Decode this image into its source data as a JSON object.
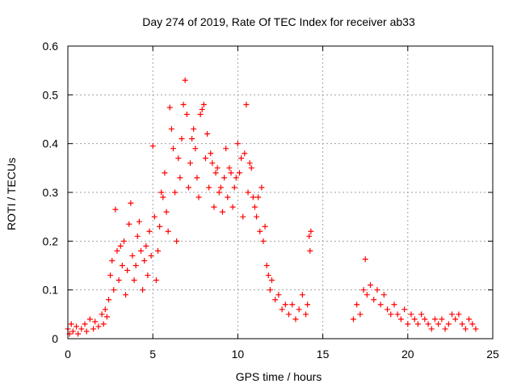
{
  "chart_data": {
    "type": "scatter",
    "title": "Day 274 of 2019, Rate Of TEC Index for receiver ab33",
    "xlabel": "GPS time / hours",
    "ylabel": "ROTI / TECUs",
    "xlim": [
      0,
      25
    ],
    "ylim": [
      0,
      0.6
    ],
    "xticks": [
      0,
      5,
      10,
      15,
      20,
      25
    ],
    "yticks": [
      0,
      0.1,
      0.2,
      0.3,
      0.4,
      0.5,
      0.6
    ],
    "xtick_labels": [
      "0",
      "5",
      "10",
      "15",
      "20",
      "25"
    ],
    "ytick_labels": [
      "0",
      "0.1",
      "0.2",
      "0.3",
      "0.4",
      "0.5",
      "0.6"
    ],
    "grid": true,
    "marker": "+",
    "color": "#ff0000",
    "series": [
      {
        "name": "ROTI",
        "points": [
          [
            0.0,
            0.02
          ],
          [
            0.1,
            0.01
          ],
          [
            0.2,
            0.03
          ],
          [
            0.3,
            0.015
          ],
          [
            0.5,
            0.025
          ],
          [
            0.6,
            0.01
          ],
          [
            0.8,
            0.02
          ],
          [
            1.0,
            0.03
          ],
          [
            1.1,
            0.015
          ],
          [
            1.3,
            0.04
          ],
          [
            1.5,
            0.02
          ],
          [
            1.6,
            0.035
          ],
          [
            1.8,
            0.025
          ],
          [
            2.0,
            0.05
          ],
          [
            2.1,
            0.03
          ],
          [
            2.2,
            0.06
          ],
          [
            2.3,
            0.045
          ],
          [
            2.4,
            0.08
          ],
          [
            2.5,
            0.13
          ],
          [
            2.6,
            0.16
          ],
          [
            2.7,
            0.1
          ],
          [
            2.8,
            0.265
          ],
          [
            2.9,
            0.18
          ],
          [
            3.0,
            0.12
          ],
          [
            3.1,
            0.19
          ],
          [
            3.2,
            0.15
          ],
          [
            3.3,
            0.2
          ],
          [
            3.4,
            0.09
          ],
          [
            3.5,
            0.14
          ],
          [
            3.6,
            0.235
          ],
          [
            3.7,
            0.278
          ],
          [
            3.8,
            0.17
          ],
          [
            3.9,
            0.12
          ],
          [
            4.0,
            0.15
          ],
          [
            4.1,
            0.21
          ],
          [
            4.2,
            0.24
          ],
          [
            4.3,
            0.18
          ],
          [
            4.4,
            0.1
          ],
          [
            4.5,
            0.16
          ],
          [
            4.6,
            0.19
          ],
          [
            4.7,
            0.13
          ],
          [
            4.8,
            0.22
          ],
          [
            4.9,
            0.17
          ],
          [
            5.0,
            0.395
          ],
          [
            5.1,
            0.25
          ],
          [
            5.2,
            0.12
          ],
          [
            5.3,
            0.18
          ],
          [
            5.4,
            0.23
          ],
          [
            5.5,
            0.3
          ],
          [
            5.6,
            0.29
          ],
          [
            5.7,
            0.34
          ],
          [
            5.8,
            0.26
          ],
          [
            5.9,
            0.22
          ],
          [
            6.0,
            0.474
          ],
          [
            6.1,
            0.43
          ],
          [
            6.2,
            0.39
          ],
          [
            6.3,
            0.3
          ],
          [
            6.4,
            0.2
          ],
          [
            6.5,
            0.37
          ],
          [
            6.6,
            0.33
          ],
          [
            6.7,
            0.41
          ],
          [
            6.8,
            0.48
          ],
          [
            6.9,
            0.53
          ],
          [
            7.0,
            0.46
          ],
          [
            7.1,
            0.31
          ],
          [
            7.2,
            0.36
          ],
          [
            7.3,
            0.41
          ],
          [
            7.4,
            0.43
          ],
          [
            7.5,
            0.39
          ],
          [
            7.6,
            0.33
          ],
          [
            7.7,
            0.29
          ],
          [
            7.8,
            0.46
          ],
          [
            7.9,
            0.47
          ],
          [
            8.0,
            0.48
          ],
          [
            8.1,
            0.37
          ],
          [
            8.2,
            0.42
          ],
          [
            8.3,
            0.31
          ],
          [
            8.4,
            0.38
          ],
          [
            8.5,
            0.36
          ],
          [
            8.6,
            0.27
          ],
          [
            8.7,
            0.34
          ],
          [
            8.8,
            0.35
          ],
          [
            8.9,
            0.3
          ],
          [
            9.0,
            0.31
          ],
          [
            9.1,
            0.26
          ],
          [
            9.2,
            0.33
          ],
          [
            9.3,
            0.39
          ],
          [
            9.4,
            0.29
          ],
          [
            9.5,
            0.35
          ],
          [
            9.6,
            0.34
          ],
          [
            9.7,
            0.27
          ],
          [
            9.8,
            0.31
          ],
          [
            9.9,
            0.33
          ],
          [
            10.0,
            0.4
          ],
          [
            10.1,
            0.34
          ],
          [
            10.2,
            0.37
          ],
          [
            10.3,
            0.25
          ],
          [
            10.4,
            0.38
          ],
          [
            10.5,
            0.48
          ],
          [
            10.6,
            0.3
          ],
          [
            10.7,
            0.36
          ],
          [
            10.8,
            0.35
          ],
          [
            10.9,
            0.29
          ],
          [
            11.0,
            0.27
          ],
          [
            11.1,
            0.25
          ],
          [
            11.2,
            0.29
          ],
          [
            11.3,
            0.22
          ],
          [
            11.4,
            0.31
          ],
          [
            11.5,
            0.2
          ],
          [
            11.6,
            0.23
          ],
          [
            11.7,
            0.15
          ],
          [
            11.8,
            0.13
          ],
          [
            11.9,
            0.1
          ],
          [
            12.0,
            0.12
          ],
          [
            12.2,
            0.08
          ],
          [
            12.4,
            0.09
          ],
          [
            12.6,
            0.06
          ],
          [
            12.8,
            0.07
          ],
          [
            13.0,
            0.05
          ],
          [
            13.2,
            0.07
          ],
          [
            13.4,
            0.04
          ],
          [
            13.6,
            0.06
          ],
          [
            13.8,
            0.09
          ],
          [
            14.0,
            0.05
          ],
          [
            14.1,
            0.07
          ],
          [
            14.2,
            0.21
          ],
          [
            14.25,
            0.18
          ],
          [
            14.3,
            0.22
          ],
          [
            16.8,
            0.04
          ],
          [
            17.0,
            0.07
          ],
          [
            17.2,
            0.05
          ],
          [
            17.4,
            0.1
          ],
          [
            17.5,
            0.163
          ],
          [
            17.6,
            0.09
          ],
          [
            17.8,
            0.11
          ],
          [
            18.0,
            0.08
          ],
          [
            18.2,
            0.1
          ],
          [
            18.4,
            0.07
          ],
          [
            18.6,
            0.09
          ],
          [
            18.8,
            0.06
          ],
          [
            19.0,
            0.05
          ],
          [
            19.2,
            0.07
          ],
          [
            19.4,
            0.05
          ],
          [
            19.6,
            0.04
          ],
          [
            19.8,
            0.06
          ],
          [
            20.0,
            0.03
          ],
          [
            20.2,
            0.05
          ],
          [
            20.4,
            0.04
          ],
          [
            20.6,
            0.03
          ],
          [
            20.8,
            0.05
          ],
          [
            21.0,
            0.04
          ],
          [
            21.2,
            0.03
          ],
          [
            21.4,
            0.02
          ],
          [
            21.6,
            0.04
          ],
          [
            21.8,
            0.03
          ],
          [
            22.0,
            0.04
          ],
          [
            22.2,
            0.02
          ],
          [
            22.4,
            0.03
          ],
          [
            22.6,
            0.05
          ],
          [
            22.8,
            0.04
          ],
          [
            23.0,
            0.05
          ],
          [
            23.2,
            0.03
          ],
          [
            23.4,
            0.02
          ],
          [
            23.6,
            0.04
          ],
          [
            23.8,
            0.03
          ],
          [
            24.0,
            0.02
          ]
        ]
      }
    ]
  }
}
